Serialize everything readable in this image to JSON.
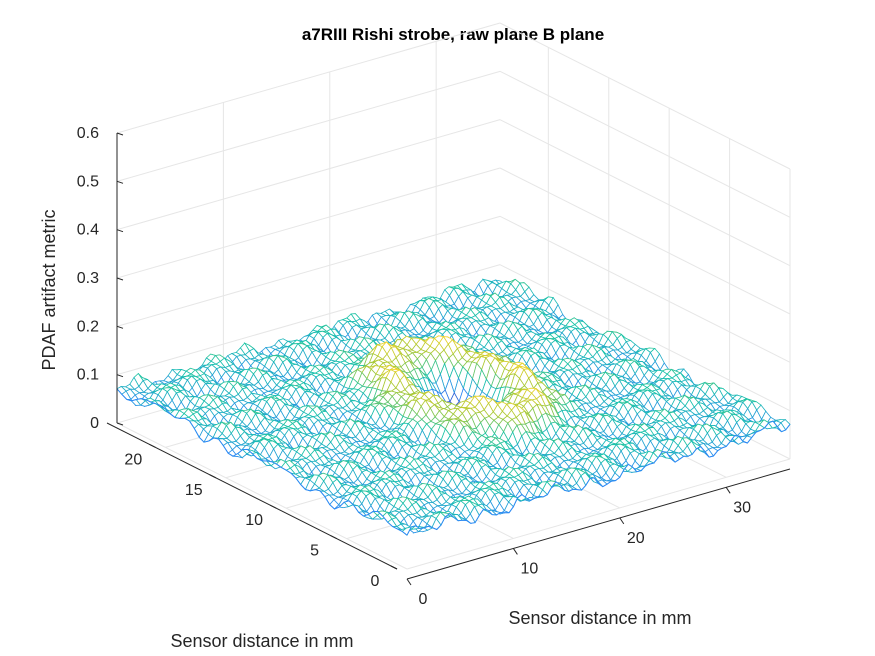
{
  "chart_data": {
    "type": "surface",
    "title": "a7RIII Rishi strobe, raw plane B plane",
    "xlabel": "Sensor distance in mm",
    "ylabel": "Sensor distance in mm",
    "zlabel": "PDAF artifact metric",
    "xlim": [
      0,
      36
    ],
    "ylim": [
      0,
      24
    ],
    "zlim": [
      0,
      0.6
    ],
    "x_ticks": [
      "0",
      "10",
      "20",
      "30"
    ],
    "y_ticks": [
      "0",
      "5",
      "10",
      "15",
      "20"
    ],
    "z_ticks": [
      "0",
      "0.1",
      "0.2",
      "0.3",
      "0.4",
      "0.5",
      "0.6"
    ],
    "grid": true,
    "colormap": "parula",
    "colors": {
      "low": "#3e26a8",
      "mid_low": "#2e89f5",
      "mid": "#19c3aa",
      "mid_high": "#a6c836",
      "high": "#f9d52a"
    },
    "surface_summary": {
      "baseline_level": 0.07,
      "noise_amplitude": 0.02,
      "feature": {
        "type": "dip",
        "center_x": 19,
        "center_y": 12.5,
        "min_value": 0.04,
        "rim_peak_value": 0.13
      }
    }
  }
}
